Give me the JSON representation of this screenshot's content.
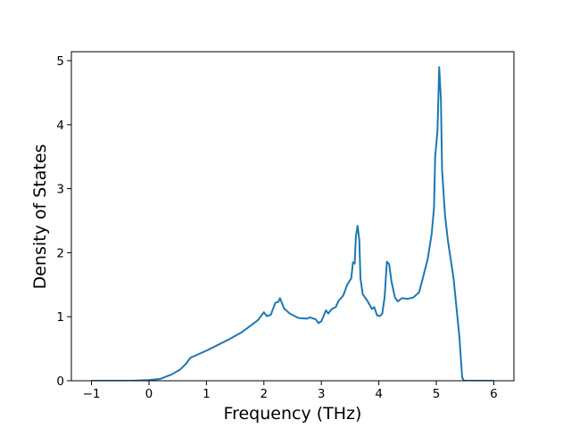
{
  "chart_data": {
    "type": "line",
    "x_label": "Frequency (THz)",
    "y_label": "Density of States",
    "xlim": [
      -1.35,
      6.35
    ],
    "ylim": [
      0,
      5.14
    ],
    "xticks": [
      {
        "value": -1,
        "label": "−1"
      },
      0,
      1,
      2,
      3,
      4,
      5,
      6
    ],
    "yticks": [
      0,
      1,
      2,
      3,
      4,
      5
    ],
    "grid": false,
    "series": [
      {
        "color": "#1f77b4",
        "x": [
          -1,
          -0.3,
          0,
          0.2,
          0.4,
          0.55,
          0.65,
          0.72,
          0.8,
          1,
          1.2,
          1.4,
          1.6,
          1.8,
          1.9,
          2.0,
          2.05,
          2.12,
          2.2,
          2.25,
          2.28,
          2.35,
          2.45,
          2.6,
          2.75,
          2.8,
          2.9,
          2.95,
          3.0,
          3.08,
          3.12,
          3.18,
          3.25,
          3.3,
          3.38,
          3.45,
          3.52,
          3.55,
          3.58,
          3.6,
          3.63,
          3.66,
          3.68,
          3.72,
          3.8,
          3.88,
          3.92,
          3.97,
          4.02,
          4.06,
          4.1,
          4.14,
          4.18,
          4.22,
          4.28,
          4.33,
          4.4,
          4.5,
          4.6,
          4.7,
          4.75,
          4.85,
          4.92,
          4.96,
          4.98,
          5.02,
          5.05,
          5.08,
          5.1,
          5.15,
          5.2,
          5.3,
          5.4,
          5.45,
          5.48,
          6
        ],
        "values": [
          0,
          0,
          0.01,
          0.03,
          0.1,
          0.18,
          0.27,
          0.36,
          0.39,
          0.47,
          0.56,
          0.65,
          0.75,
          0.88,
          0.95,
          1.07,
          1.01,
          1.03,
          1.22,
          1.23,
          1.29,
          1.13,
          1.05,
          0.98,
          0.97,
          0.99,
          0.96,
          0.9,
          0.93,
          1.1,
          1.05,
          1.12,
          1.15,
          1.25,
          1.33,
          1.5,
          1.6,
          1.85,
          1.83,
          2.25,
          2.42,
          2.2,
          1.6,
          1.35,
          1.25,
          1.12,
          1.15,
          1.02,
          1.01,
          1.05,
          1.3,
          1.86,
          1.82,
          1.55,
          1.3,
          1.24,
          1.29,
          1.28,
          1.3,
          1.38,
          1.55,
          1.9,
          2.3,
          2.7,
          3.5,
          3.9,
          4.9,
          4.4,
          3.3,
          2.6,
          2.2,
          1.6,
          0.7,
          0.05,
          0,
          0
        ]
      }
    ]
  }
}
